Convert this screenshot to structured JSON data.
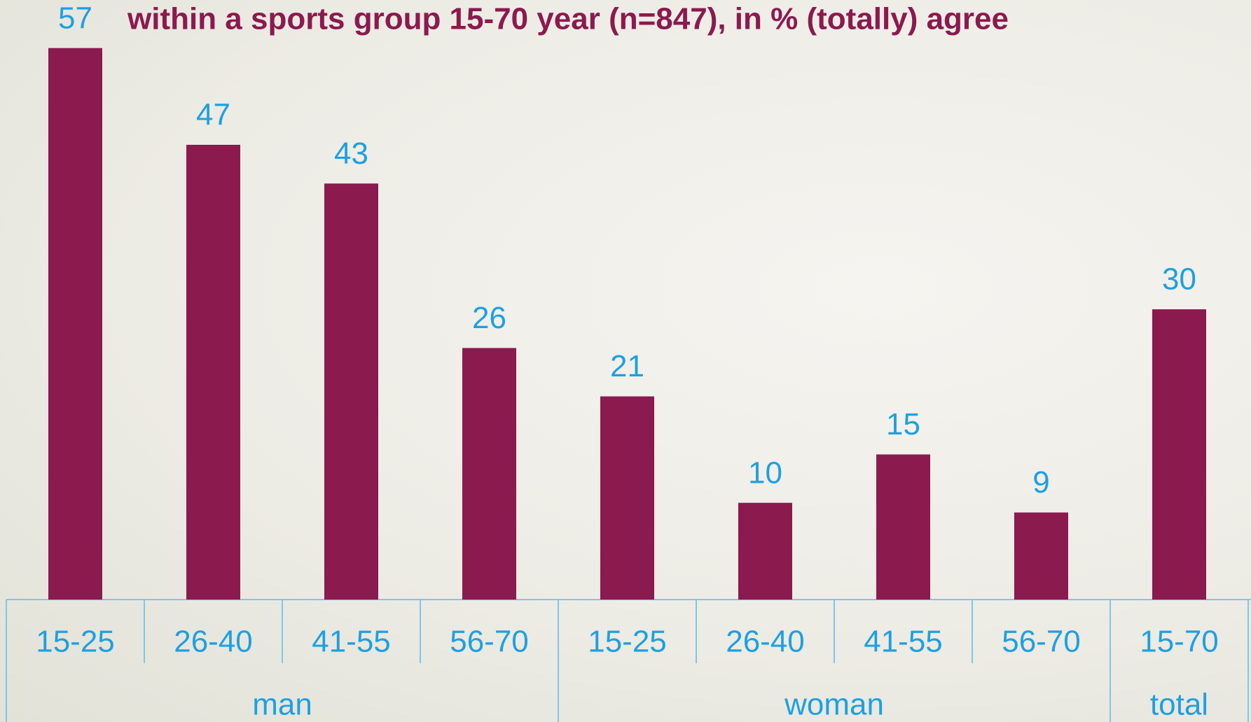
{
  "chart_data": {
    "type": "bar",
    "title": "within a sports group 15-70 year (n=847), in % (totally) agree",
    "color": "#8b1a4e",
    "groups": [
      {
        "name": "man",
        "categories": [
          "15-25",
          "26-40",
          "41-55",
          "56-70"
        ],
        "values": [
          57,
          47,
          43,
          26
        ]
      },
      {
        "name": "woman",
        "categories": [
          "15-25",
          "26-40",
          "41-55",
          "56-70"
        ],
        "values": [
          21,
          10,
          15,
          9
        ]
      },
      {
        "name": "total",
        "categories": [
          "15-70"
        ],
        "values": [
          30
        ]
      }
    ]
  }
}
